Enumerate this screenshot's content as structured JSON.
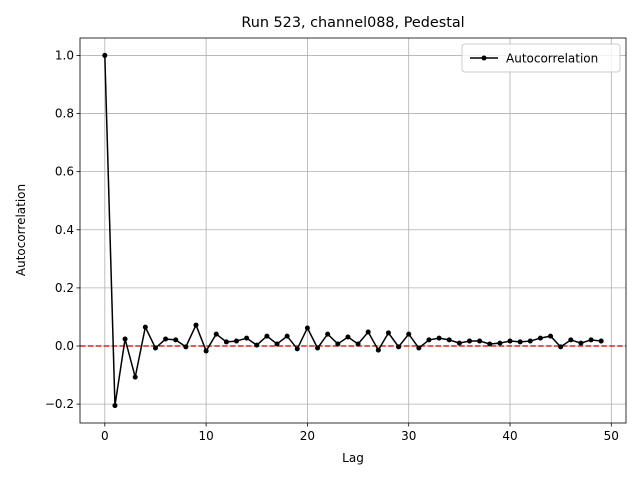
{
  "chart_data": {
    "type": "line",
    "title": "Run 523, channel088, Pedestal",
    "xlabel": "Lag",
    "ylabel": "Autocorrelation",
    "x": [
      0,
      1,
      2,
      3,
      4,
      5,
      6,
      7,
      8,
      9,
      10,
      11,
      12,
      13,
      14,
      15,
      16,
      17,
      18,
      19,
      20,
      21,
      22,
      23,
      24,
      25,
      26,
      27,
      28,
      29,
      30,
      31,
      32,
      33,
      34,
      35,
      36,
      37,
      38,
      39,
      40,
      41,
      42,
      43,
      44,
      45,
      46,
      47,
      48,
      49
    ],
    "series": [
      {
        "name": "Autocorrelation",
        "color": "#000000",
        "values": [
          1.0,
          -0.205,
          0.024,
          -0.107,
          0.065,
          -0.007,
          0.024,
          0.021,
          -0.003,
          0.072,
          -0.017,
          0.041,
          0.014,
          0.017,
          0.027,
          0.003,
          0.034,
          0.007,
          0.034,
          -0.01,
          0.062,
          -0.007,
          0.041,
          0.007,
          0.031,
          0.007,
          0.048,
          -0.014,
          0.045,
          -0.003,
          0.041,
          -0.007,
          0.021,
          0.027,
          0.021,
          0.01,
          0.017,
          0.017,
          0.007,
          0.01,
          0.017,
          0.014,
          0.017,
          0.027,
          0.034,
          -0.003,
          0.021,
          0.01,
          0.021,
          0.017
        ]
      }
    ],
    "hline": {
      "value": 0,
      "color": "#d62728"
    },
    "xlim": [
      -2.45,
      51.45
    ],
    "xticks": [
      0,
      10,
      20,
      30,
      40,
      50
    ],
    "ylim": [
      -0.265,
      1.06
    ],
    "yticks": [
      {
        "value": -0.2,
        "label": "−0.2"
      },
      {
        "value": 0,
        "label": "0.0"
      },
      {
        "value": 0.2,
        "label": "0.2"
      },
      {
        "value": 0.4,
        "label": "0.4"
      },
      {
        "value": 0.6,
        "label": "0.6"
      },
      {
        "value": 0.8,
        "label": "0.8"
      },
      {
        "value": 1.0,
        "label": "1.0"
      }
    ],
    "grid": true,
    "legend": "upper right"
  }
}
